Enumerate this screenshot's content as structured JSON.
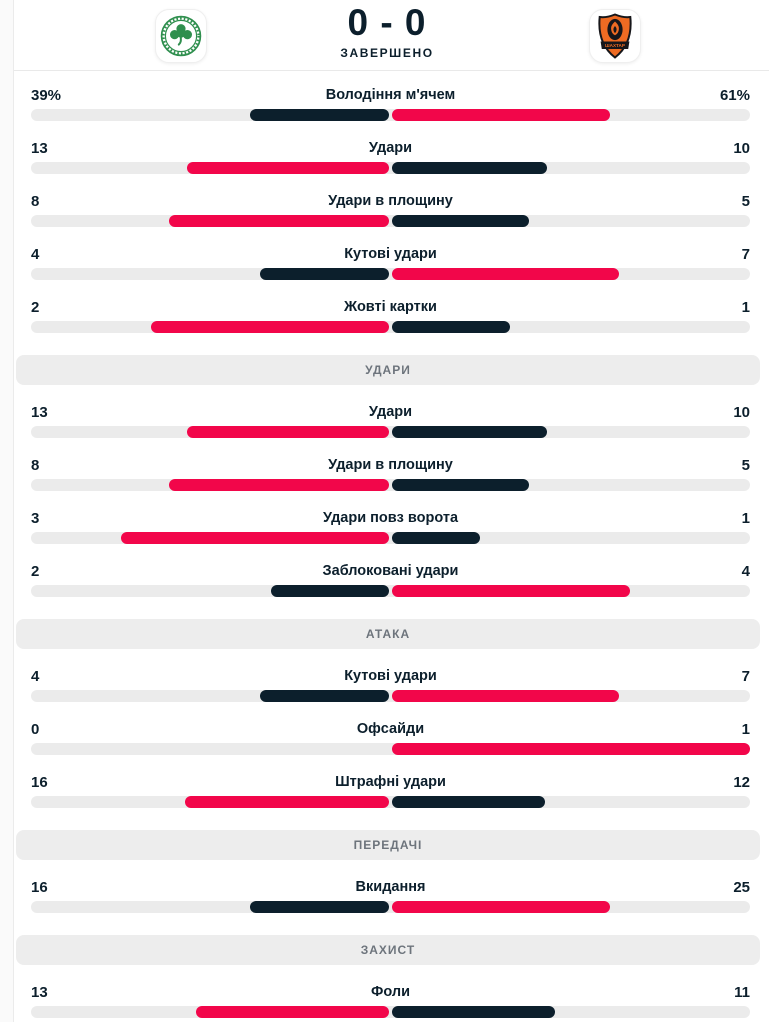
{
  "header": {
    "home_team": "Panathinaikos",
    "away_team": "Shakhtar Donetsk",
    "score": "0 - 0",
    "status": "ЗАВЕРШЕНО"
  },
  "colors": {
    "bar_win": "#f2064a",
    "bar_lose": "#0c1f2c",
    "track": "#ebebeb",
    "section_bg": "#ededed",
    "section_text": "#6d747c",
    "text": "#0c1f2c",
    "home_logo_green": "#2f8f4e",
    "away_logo_orange": "#ee6b23",
    "away_logo_black": "#16161a"
  },
  "stats_sections": [
    {
      "title": "",
      "rows": [
        {
          "label": "Володіння м'ячем",
          "home": "39%",
          "away": "61%",
          "home_value": 39,
          "away_value": 61
        },
        {
          "label": "Удари",
          "home": "13",
          "away": "10",
          "home_value": 13,
          "away_value": 10
        },
        {
          "label": "Удари в площину",
          "home": "8",
          "away": "5",
          "home_value": 8,
          "away_value": 5
        },
        {
          "label": "Кутові удари",
          "home": "4",
          "away": "7",
          "home_value": 4,
          "away_value": 7
        },
        {
          "label": "Жовті картки",
          "home": "2",
          "away": "1",
          "home_value": 2,
          "away_value": 1
        }
      ]
    },
    {
      "title": "УДАРИ",
      "rows": [
        {
          "label": "Удари",
          "home": "13",
          "away": "10",
          "home_value": 13,
          "away_value": 10
        },
        {
          "label": "Удари в площину",
          "home": "8",
          "away": "5",
          "home_value": 8,
          "away_value": 5
        },
        {
          "label": "Удари повз ворота",
          "home": "3",
          "away": "1",
          "home_value": 3,
          "away_value": 1
        },
        {
          "label": "Заблоковані удари",
          "home": "2",
          "away": "4",
          "home_value": 2,
          "away_value": 4
        }
      ]
    },
    {
      "title": "АТАКА",
      "rows": [
        {
          "label": "Кутові удари",
          "home": "4",
          "away": "7",
          "home_value": 4,
          "away_value": 7
        },
        {
          "label": "Офсайди",
          "home": "0",
          "away": "1",
          "home_value": 0,
          "away_value": 1
        },
        {
          "label": "Штрафні удари",
          "home": "16",
          "away": "12",
          "home_value": 16,
          "away_value": 12
        }
      ]
    },
    {
      "title": "ПЕРЕДАЧІ",
      "rows": [
        {
          "label": "Вкидання",
          "home": "16",
          "away": "25",
          "home_value": 16,
          "away_value": 25
        }
      ]
    },
    {
      "title": "ЗАХИСТ",
      "rows": [
        {
          "label": "Фоли",
          "home": "13",
          "away": "11",
          "home_value": 13,
          "away_value": 11
        }
      ]
    }
  ]
}
